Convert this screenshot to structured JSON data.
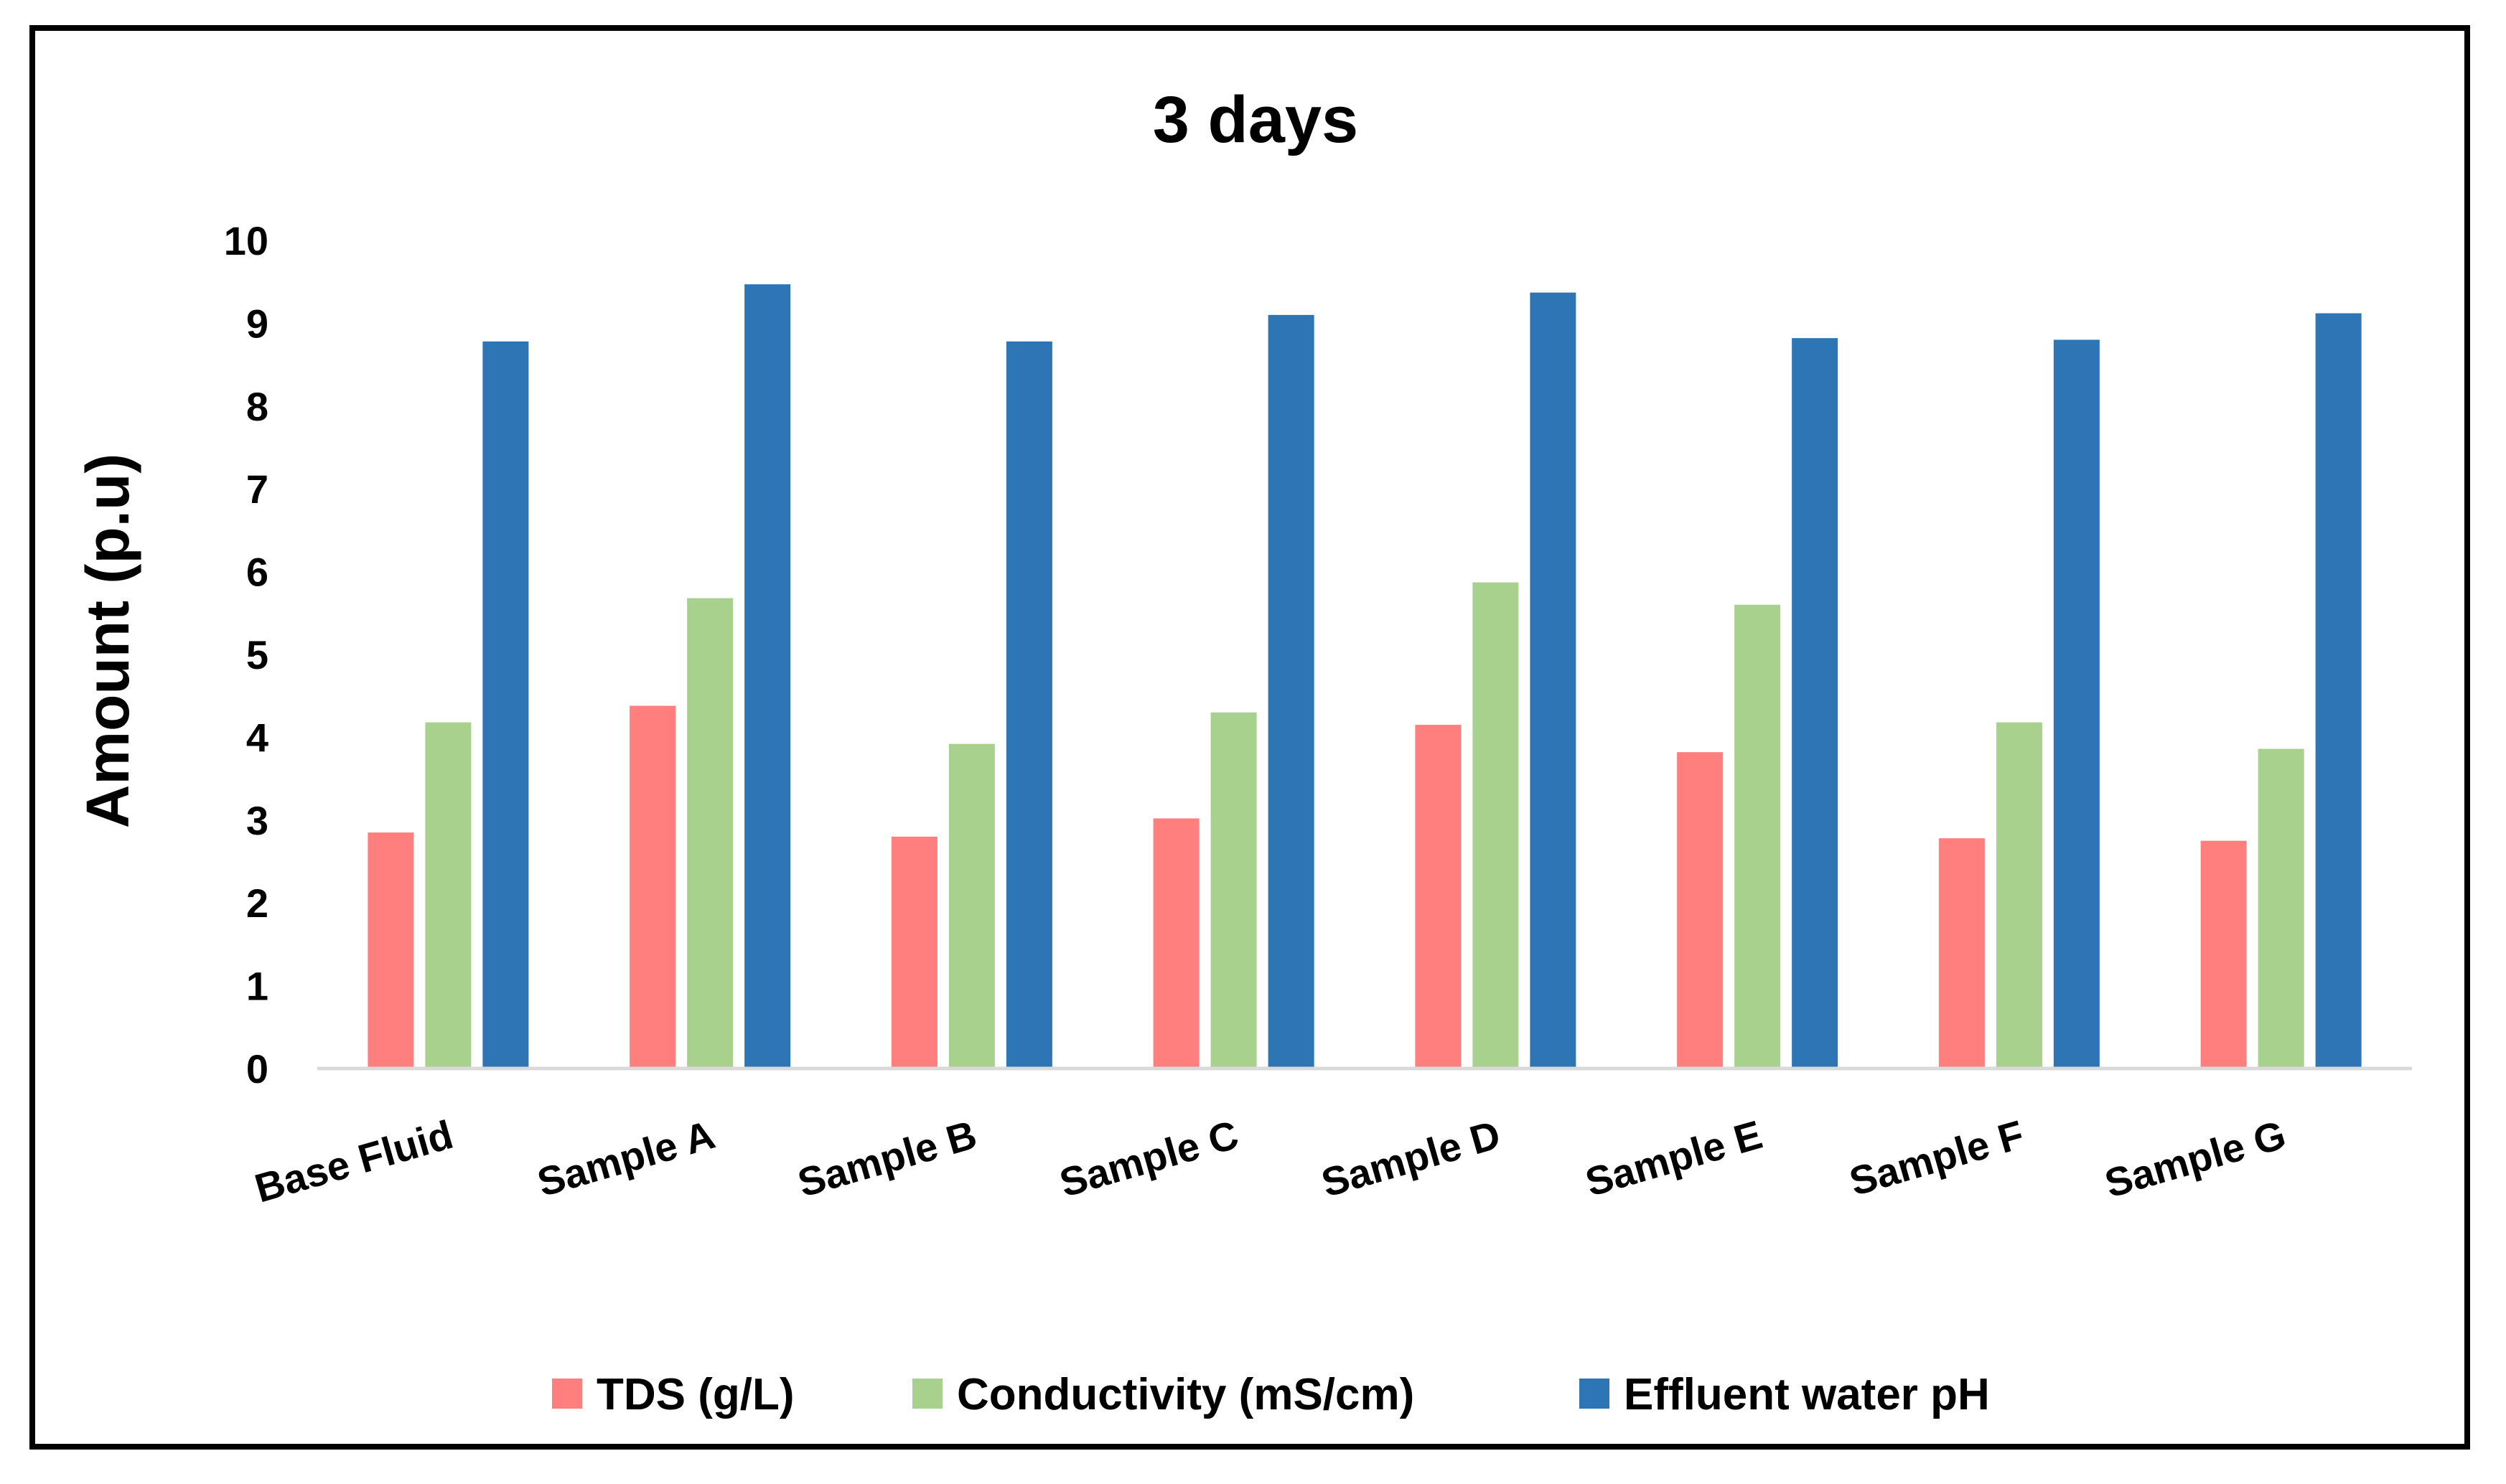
{
  "chart_data": {
    "type": "bar",
    "title": "3 days",
    "xlabel": "",
    "ylabel": "Amount (p.u)",
    "ylim": [
      0,
      10
    ],
    "yticks": [
      "0",
      "1",
      "2",
      "3",
      "4",
      "5",
      "6",
      "7",
      "8",
      "9",
      "10"
    ],
    "categories": [
      "Base Fluid",
      "Sample A",
      "Sample B",
      "Sample C",
      "Sample D",
      "Sample E",
      "Sample F",
      "Sample G"
    ],
    "series": [
      {
        "name": "TDS (g/L)",
        "color": "#FF7F7F",
        "values": [
          2.85,
          4.38,
          2.8,
          3.02,
          4.15,
          3.82,
          2.78,
          2.75
        ]
      },
      {
        "name": "Conductivity (mS/cm)",
        "color": "#A9D18E",
        "values": [
          4.18,
          5.68,
          3.92,
          4.3,
          5.87,
          5.6,
          4.18,
          3.86
        ]
      },
      {
        "name": "Effluent water pH",
        "color": "#2E75B6",
        "values": [
          8.78,
          9.47,
          8.78,
          9.1,
          9.37,
          8.82,
          8.8,
          9.12
        ]
      }
    ],
    "grid": false,
    "legend_position": "bottom"
  }
}
